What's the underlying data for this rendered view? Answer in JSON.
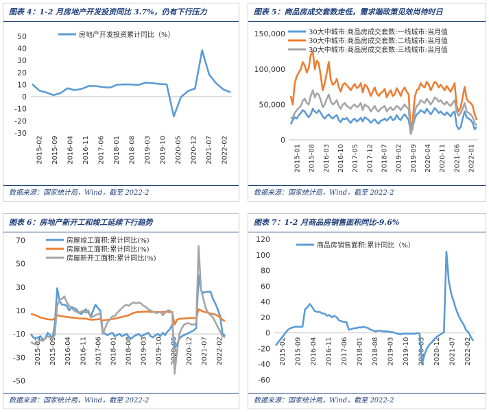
{
  "panels": [
    {
      "title": "图表 4：1-2 月房地产开发投资同比 3.7%，仍有下行压力",
      "source": "数据来源：国家统计局，Wind，截至 2022-2"
    },
    {
      "title": "图表 5：商品房成交套数走低，需求端政策见效尚待时日",
      "source": "数据来源：国家统计局，Wind，截至 2022-2"
    },
    {
      "title": "图表 6：房地产新开工和竣工延续下行趋势",
      "source": "数据来源：国家统计局，Wind，截至 2022-2"
    },
    {
      "title": "图表 7：1-2 月商品房销售面积同比-9.6%",
      "source": "数据来源：国家统计局，Wind，截至 2022-2"
    }
  ],
  "colors": {
    "blue": "#5b9bd5",
    "orange": "#ed7d31",
    "gray": "#a5a5a5",
    "accent": "#1f3f7a"
  },
  "chart_data": [
    {
      "type": "line",
      "title": "",
      "yticks": [
        -30,
        -20,
        -10,
        0,
        10,
        20,
        30,
        40,
        50
      ],
      "ylim": [
        -30,
        55
      ],
      "xticks": [
        "2015-02",
        "2015-09",
        "2016-04",
        "2016-11",
        "2017-06",
        "2018-01",
        "2018-08",
        "2019-03",
        "2019-10",
        "2020-05",
        "2020-12",
        "2021-07",
        "2022-02"
      ],
      "legend": "top-left",
      "series": [
        {
          "name": "房地产开发投资累计同比（%）",
          "color": "#5b9bd5",
          "x": [
            "2015-02",
            "2015-05",
            "2015-08",
            "2015-11",
            "2016-02",
            "2016-05",
            "2016-08",
            "2016-11",
            "2017-02",
            "2017-05",
            "2017-08",
            "2017-11",
            "2018-02",
            "2018-05",
            "2018-08",
            "2018-11",
            "2019-02",
            "2019-05",
            "2019-08",
            "2019-11",
            "2020-02",
            "2020-05",
            "2020-08",
            "2020-11",
            "2021-02",
            "2021-05",
            "2021-08",
            "2021-11",
            "2022-02"
          ],
          "values": [
            10.4,
            5.1,
            3.5,
            1.3,
            3.0,
            7.0,
            5.4,
            6.5,
            8.9,
            8.8,
            7.9,
            7.5,
            9.9,
            10.2,
            10.1,
            9.7,
            11.6,
            11.2,
            10.5,
            10.2,
            -16.3,
            -0.3,
            4.6,
            6.8,
            38.3,
            18.3,
            10.9,
            6.0,
            3.7
          ]
        }
      ]
    },
    {
      "type": "line",
      "title": "",
      "yticks": [
        0,
        50000,
        100000,
        150000
      ],
      "ytick_labels": [
        "0",
        "50,000",
        "100,000",
        "150,000"
      ],
      "ylim": [
        0,
        155000
      ],
      "xticks": [
        "2015-01",
        "2015-08",
        "2016-03",
        "2016-10",
        "2017-05",
        "2017-12",
        "2018-07",
        "2019-02",
        "2019-09",
        "2020-04",
        "2020-11",
        "2021-06",
        "2022-01"
      ],
      "legend": "top-left",
      "series": [
        {
          "name": "30大中城市:商品房成交套数:一线城市:当月值",
          "color": "#5b9bd5",
          "values": [
            22000,
            28000,
            32000,
            30000,
            35000,
            38000,
            42000,
            40000,
            35000,
            32000,
            36000,
            44000,
            40000,
            38000,
            42000,
            38000,
            33000,
            30000,
            34000,
            36000,
            32000,
            30000,
            33000,
            35000,
            28000,
            25000,
            30000,
            29000,
            31000,
            27000,
            24000,
            28000,
            30000,
            26000,
            28000,
            31000,
            26000,
            32000,
            30000,
            28000,
            24000,
            27000,
            29000,
            25000,
            23000,
            27000,
            28000,
            30000,
            27000,
            30000,
            33000,
            28000,
            29000,
            35000,
            30000,
            28000,
            33000,
            36000,
            32000,
            28000,
            10000,
            18000,
            30000,
            36000,
            38000,
            42000,
            40000,
            38000,
            44000,
            40000,
            36000,
            40000,
            45000,
            42000,
            38000,
            40000,
            37000,
            35000,
            39000,
            36000,
            33000,
            38000,
            40000,
            20000,
            15000,
            18000,
            30000,
            40000,
            32000,
            30000,
            28000,
            24000,
            15000,
            18000
          ]
        },
        {
          "name": "30大中城市:商品房成交套数:二线城市:当月值",
          "color": "#ed7d31",
          "values": [
            62000,
            50000,
            80000,
            90000,
            95000,
            100000,
            110000,
            105000,
            95000,
            102000,
            120000,
            125000,
            100000,
            112000,
            108000,
            90000,
            70000,
            80000,
            95000,
            110000,
            85000,
            78000,
            80000,
            86000,
            75000,
            68000,
            78000,
            80000,
            77000,
            74000,
            70000,
            75000,
            79000,
            73000,
            75000,
            80000,
            67000,
            78000,
            76000,
            70000,
            62000,
            68000,
            74000,
            66000,
            62000,
            66000,
            68000,
            72000,
            60000,
            66000,
            70000,
            62000,
            64000,
            73000,
            68000,
            62000,
            70000,
            74000,
            68000,
            64000,
            14000,
            28000,
            60000,
            70000,
            72000,
            80000,
            76000,
            74000,
            82000,
            78000,
            70000,
            76000,
            82000,
            80000,
            74000,
            78000,
            74000,
            70000,
            76000,
            72000,
            68000,
            74000,
            80000,
            48000,
            40000,
            46000,
            60000,
            75000,
            58000,
            54000,
            52000,
            48000,
            36000,
            28000
          ]
        },
        {
          "name": "30大中城市:商品房成交套数:三线城市:当月值",
          "color": "#a5a5a5",
          "values": [
            30000,
            32000,
            38000,
            42000,
            45000,
            48000,
            55000,
            58000,
            52000,
            50000,
            62000,
            70000,
            60000,
            66000,
            64000,
            56000,
            46000,
            50000,
            58000,
            64000,
            54000,
            50000,
            52000,
            56000,
            48000,
            44000,
            50000,
            52000,
            48000,
            46000,
            44000,
            48000,
            50000,
            46000,
            48000,
            52000,
            42000,
            50000,
            48000,
            46000,
            40000,
            44000,
            48000,
            42000,
            40000,
            44000,
            46000,
            48000,
            40000,
            44000,
            46000,
            42000,
            44000,
            48000,
            46000,
            42000,
            46000,
            50000,
            46000,
            44000,
            8000,
            16000,
            40000,
            48000,
            50000,
            56000,
            54000,
            52000,
            58000,
            54000,
            50000,
            54000,
            60000,
            58000,
            54000,
            56000,
            52000,
            50000,
            54000,
            50000,
            48000,
            52000,
            56000,
            40000,
            34000,
            38000,
            44000,
            52000,
            40000,
            38000,
            36000,
            32000,
            24000,
            20000
          ]
        }
      ]
    },
    {
      "type": "line",
      "title": "",
      "yticks": [
        -50,
        -30,
        -10,
        10,
        30,
        50,
        70
      ],
      "ylim": [
        -55,
        72
      ],
      "xticks": [
        "2015-02",
        "2015-09",
        "2016-04",
        "2016-11",
        "2017-06",
        "2018-01",
        "2018-08",
        "2019-03",
        "2019-10",
        "2020-05",
        "2020-12",
        "2021-07",
        "2022-02"
      ],
      "legend": "top-left",
      "series": [
        {
          "name": "房屋竣工面积:累计同比(%)",
          "color": "#5b9bd5",
          "values": [
            -10,
            -13,
            -14,
            -13,
            -12,
            -15,
            -14,
            -9,
            -11,
            -14,
            -2,
            29,
            18,
            15,
            15,
            14,
            10,
            13,
            12,
            11,
            8,
            7,
            9,
            11,
            8,
            5,
            10,
            15,
            12,
            10,
            -8,
            -10,
            -11,
            -10,
            -9,
            -12,
            -11,
            -10,
            -12,
            -11,
            -10,
            -13,
            -14,
            -12,
            -11,
            -10,
            -12,
            -11,
            -10,
            -9,
            -12,
            -13,
            -11,
            -10,
            -12,
            -9,
            -11,
            -8,
            -6,
            -2,
            -22,
            -19,
            -14,
            -12,
            -11,
            -10,
            -9,
            -8,
            -7,
            -5,
            40,
            27,
            25,
            26,
            26,
            26,
            20,
            16,
            11,
            5,
            -10,
            -12
          ]
        },
        {
          "name": "房屋施工面积:累计同比(%)",
          "color": "#ed7d31",
          "values": [
            7,
            6.5,
            6,
            5,
            4,
            3.5,
            3,
            2.5,
            2.3,
            2.2,
            3,
            6,
            5.5,
            5,
            4.8,
            4.5,
            4.2,
            4,
            3.9,
            3.5,
            3.3,
            3.2,
            3.1,
            3,
            2.5,
            2.1,
            2.2,
            2.3,
            2.5,
            2.8,
            1.5,
            1.8,
            2.1,
            2.4,
            2.7,
            3.0,
            3.5,
            4.0,
            4.5,
            5.0,
            5.5,
            6.0,
            7.2,
            8.0,
            8.5,
            8.7,
            8.8,
            8.9,
            9.0,
            9.0,
            8.8,
            8.9,
            8.8,
            8.7,
            8.5,
            8.7,
            9.0,
            8.9,
            8.6,
            8.7,
            -2,
            2,
            3,
            3,
            3.2,
            3.4,
            3.5,
            3.5,
            3.6,
            3.6,
            11,
            10,
            9,
            8.5,
            8,
            7.5,
            7,
            6.5,
            5.5,
            4,
            2,
            1
          ]
        },
        {
          "name": "房屋新开工面积:累计同比(%)",
          "color": "#a5a5a5",
          "values": [
            -17,
            -18,
            -19,
            -17,
            -15,
            -16,
            -14,
            -12,
            -13,
            -14,
            -11,
            14,
            19,
            20,
            22,
            17,
            14,
            12,
            10,
            9,
            8,
            9,
            10,
            8,
            10,
            4,
            5,
            6,
            7,
            7,
            -10,
            -5,
            0,
            2,
            5,
            5,
            8,
            10,
            12,
            14,
            15,
            14,
            16,
            17,
            16,
            17,
            16,
            14,
            13,
            11,
            10,
            9,
            8,
            8,
            9,
            6,
            8,
            10,
            10,
            8,
            -44,
            -25,
            -10,
            -5,
            -2,
            -1,
            -1,
            -2,
            -2,
            -1,
            65,
            28,
            20,
            12,
            8,
            6,
            4,
            0,
            -4,
            -8,
            -12,
            -13
          ]
        }
      ]
    },
    {
      "type": "line",
      "title": "",
      "yticks": [
        -60,
        -40,
        -20,
        0,
        20,
        40,
        60,
        80,
        100,
        120
      ],
      "ylim": [
        -60,
        120
      ],
      "xticks": [
        "2015-02",
        "2015-09",
        "2016-04",
        "2016-11",
        "2017-06",
        "2018-01",
        "2018-08",
        "2019-03",
        "2019-10",
        "2020-05",
        "2020-12",
        "2021-07",
        "2022-02"
      ],
      "legend": "top-left",
      "series": [
        {
          "name": "商品房销售面积:累计同比（%）",
          "color": "#5b9bd5",
          "values": [
            -16,
            -12,
            -8,
            -4,
            0,
            4,
            6,
            7,
            8,
            8,
            8,
            8,
            30,
            33,
            37,
            33,
            28,
            27,
            27,
            25,
            25,
            22,
            23,
            20,
            22,
            20,
            16,
            15,
            14,
            14,
            4,
            5,
            6,
            6,
            7,
            7,
            8,
            7,
            6,
            4,
            3,
            2,
            3,
            3,
            2,
            2,
            2,
            1,
            1,
            0,
            -1,
            -2,
            -1,
            -1,
            -1,
            -1,
            -1,
            -1,
            0,
            -1,
            -40,
            -28,
            -20,
            -15,
            -12,
            -8,
            -5,
            -3,
            -1,
            1,
            104,
            66,
            50,
            40,
            30,
            22,
            16,
            11,
            4,
            1,
            -5,
            -10
          ]
        }
      ]
    }
  ]
}
